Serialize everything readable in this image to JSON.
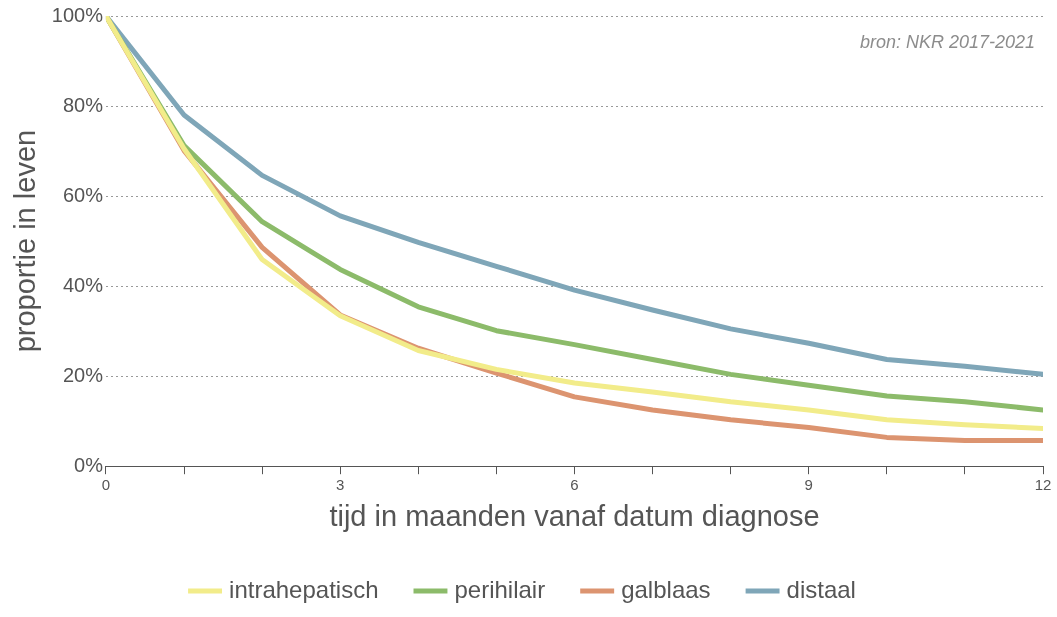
{
  "chart_data": {
    "type": "line",
    "xlabel": "tijd in maanden vanaf datum diagnose",
    "ylabel": "proportie in leven",
    "annotations": [
      "bron: NKR 2017-2021"
    ],
    "x": [
      0,
      1,
      2,
      3,
      4,
      5,
      6,
      7,
      8,
      9,
      10,
      11,
      12
    ],
    "xlim": [
      0,
      12
    ],
    "xticks": [
      0,
      {
        "value": 1,
        "label": null
      },
      {
        "value": 2,
        "label": null
      },
      3,
      {
        "value": 4,
        "label": null
      },
      {
        "value": 5,
        "label": null
      },
      6,
      {
        "value": 7,
        "label": null
      },
      {
        "value": 8,
        "label": null
      },
      9,
      {
        "value": 10,
        "label": null
      },
      {
        "value": 11,
        "label": null
      },
      12
    ],
    "ylim": [
      0,
      100
    ],
    "yticks": [
      {
        "value": 0,
        "label": "0%"
      },
      {
        "value": 20,
        "label": "20%"
      },
      {
        "value": 40,
        "label": "40%"
      },
      {
        "value": 60,
        "label": "60%"
      },
      {
        "value": 80,
        "label": "80%"
      },
      {
        "value": 100,
        "label": "100%"
      }
    ],
    "grid": "y",
    "legend": "bottom",
    "marker": "none",
    "line_style": "solid",
    "series": [
      {
        "name": "intrahepatisch",
        "color": "#f2ec8a",
        "values": [
          100,
          70.5,
          45.9,
          33.4,
          25.7,
          21.5,
          18.5,
          16.5,
          14.3,
          12.5,
          10.3,
          9.2,
          8.4
        ]
      },
      {
        "name": "perihilair",
        "color": "#8cbb6a",
        "values": [
          100,
          71.2,
          54.3,
          43.7,
          35.4,
          30.1,
          27,
          23.7,
          20.4,
          18,
          15.6,
          14.3,
          12.5
        ]
      },
      {
        "name": "galblaas",
        "color": "#dc9470",
        "values": [
          100,
          70.1,
          48.6,
          33.6,
          26.2,
          20.7,
          15.4,
          12.5,
          10.3,
          8.6,
          6.4,
          5.7,
          5.7
        ]
      },
      {
        "name": "distaal",
        "color": "#7fa6b8",
        "values": [
          100,
          78,
          64.6,
          55.6,
          49.7,
          44.4,
          39.1,
          34.7,
          30.5,
          27.3,
          23.7,
          22.2,
          20.4
        ]
      }
    ]
  }
}
